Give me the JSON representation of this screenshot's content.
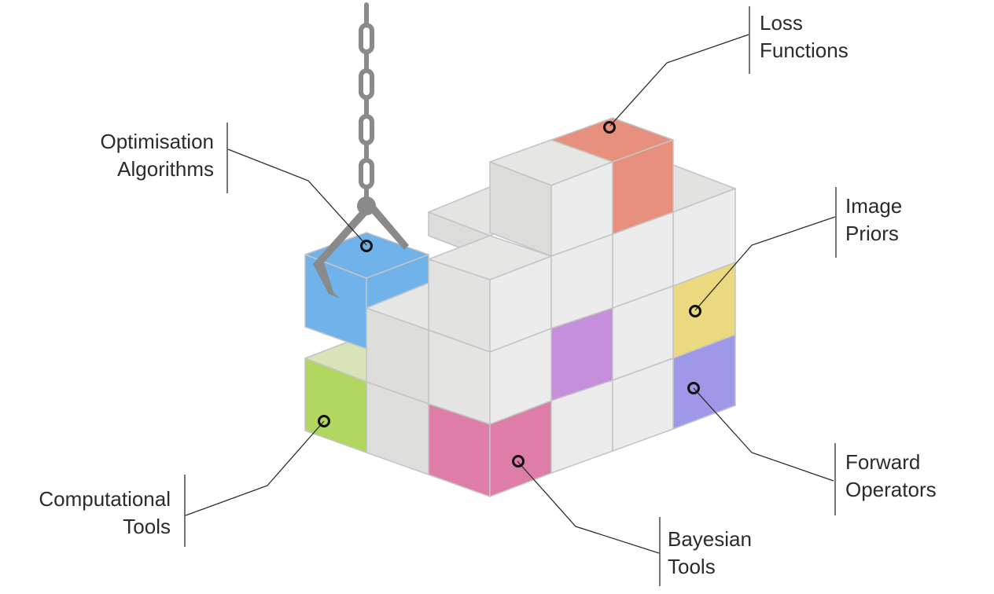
{
  "labels": {
    "loss_functions": [
      "Loss",
      "Functions"
    ],
    "optimisation_algorithms": [
      "Optimisation",
      "Algorithms"
    ],
    "image_priors": [
      "Image",
      "Priors"
    ],
    "forward_operators": [
      "Forward",
      "Operators"
    ],
    "bayesian_tools": [
      "Bayesian",
      "Tools"
    ],
    "computational_tools": [
      "Computational",
      "Tools"
    ]
  },
  "colors": {
    "loss_functions": "#e8907e",
    "optimisation_algorithms": "#6fb3ea",
    "image_priors": "#ead97e",
    "forward_operators": "#9d98e8",
    "bayesian_tools": "#de7ea8",
    "computational_tools": "#b2d760",
    "purple_cube": "#c58fdc",
    "cube_top": "#e6e6e4",
    "cube_left": "#dededc",
    "cube_right": "#ececec",
    "edge": "#c4c4c4",
    "chain": "#8a8a8a",
    "leader": "#2b2b2b"
  }
}
